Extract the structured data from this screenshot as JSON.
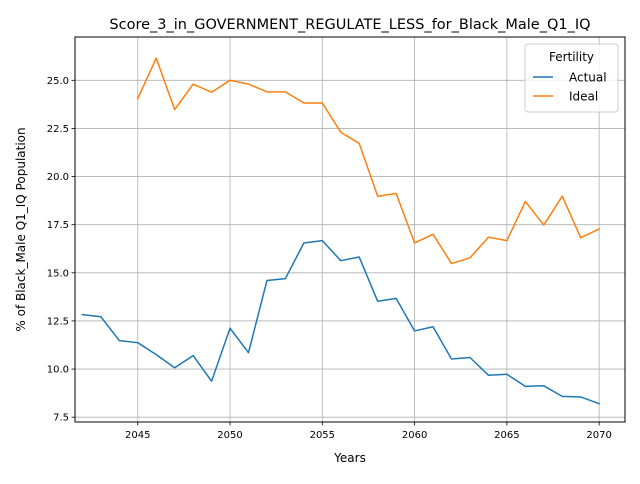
{
  "chart_data": {
    "type": "line",
    "title": "Score_3_in_GOVERNMENT_REGULATE_LESS_for_Black_Male_Q1_IQ",
    "xlabel": "Years",
    "ylabel": "% of Black_Male Q1_IQ Population",
    "xlim": [
      2041.6,
      2071.4
    ],
    "ylim": [
      7.25,
      27.25
    ],
    "xticks": [
      2045,
      2050,
      2055,
      2060,
      2065,
      2070
    ],
    "yticks": [
      7.5,
      10.0,
      12.5,
      15.0,
      17.5,
      20.0,
      22.5,
      25.0
    ],
    "grid": true,
    "legend": {
      "title": "Fertility",
      "placement": "top-right"
    },
    "series": [
      {
        "name": "Actual",
        "color": "#1f77b4",
        "x": [
          2042,
          2043,
          2044,
          2045,
          2046,
          2047,
          2048,
          2049,
          2050,
          2051,
          2052,
          2053,
          2054,
          2055,
          2056,
          2057,
          2058,
          2059,
          2060,
          2061,
          2062,
          2063,
          2064,
          2065,
          2066,
          2067,
          2068,
          2069,
          2070
        ],
        "y": [
          12.83,
          12.72,
          11.48,
          11.37,
          10.75,
          10.07,
          10.7,
          9.37,
          12.12,
          10.85,
          14.6,
          14.7,
          16.55,
          16.67,
          15.63,
          15.82,
          13.52,
          13.67,
          11.98,
          12.2,
          10.52,
          10.6,
          9.68,
          9.73,
          9.1,
          9.13,
          8.58,
          8.55,
          8.2
        ]
      },
      {
        "name": "Ideal",
        "color": "#ff7f0e",
        "x": [
          2045,
          2046,
          2047,
          2048,
          2049,
          2050,
          2051,
          2052,
          2053,
          2054,
          2055,
          2056,
          2057,
          2058,
          2059,
          2060,
          2061,
          2062,
          2063,
          2064,
          2065,
          2066,
          2067,
          2068,
          2069,
          2070
        ],
        "y": [
          24.05,
          26.15,
          23.48,
          24.8,
          24.38,
          25.0,
          24.8,
          24.4,
          24.4,
          23.82,
          23.82,
          22.3,
          21.72,
          18.98,
          19.12,
          16.55,
          17.0,
          15.48,
          15.78,
          16.85,
          16.67,
          18.7,
          17.48,
          18.98,
          16.82,
          17.28
        ]
      }
    ]
  }
}
